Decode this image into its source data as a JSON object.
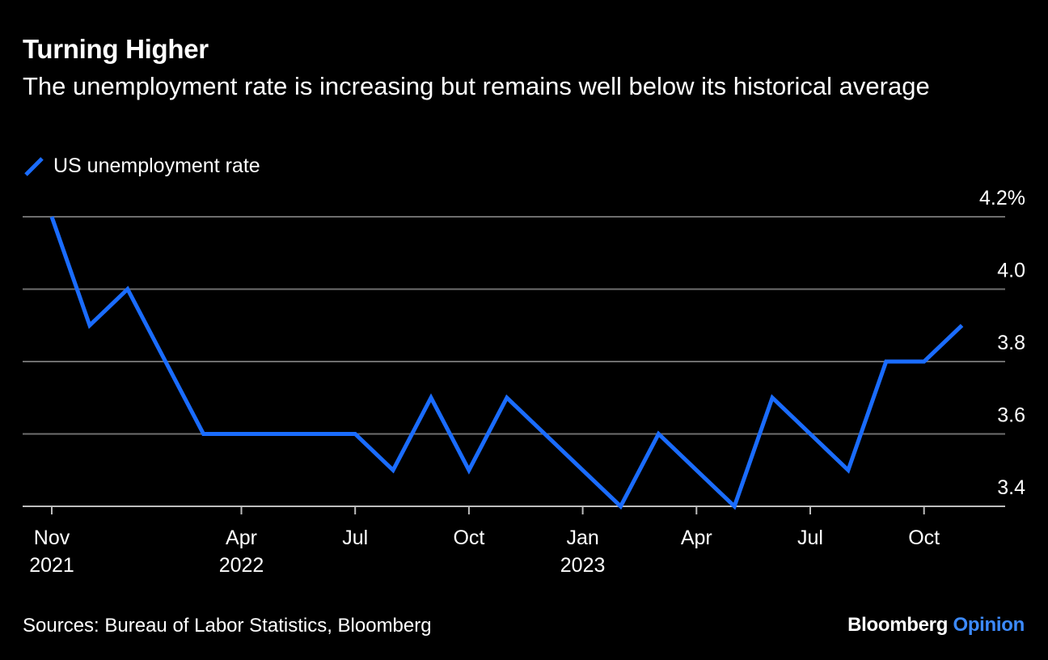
{
  "header": {
    "title": "Turning Higher",
    "subtitle": "The unemployment rate is increasing but remains well below its historical average"
  },
  "footer": {
    "source": "Sources: Bureau of Labor Statistics, Bloomberg",
    "brand_main": "Bloomberg",
    "brand_accent": "Opinion"
  },
  "colors": {
    "background": "#000000",
    "line": "#1a6cff",
    "grid": "#6e6e6e",
    "brand_accent": "#3c8aff"
  },
  "chart_data": {
    "type": "line",
    "title": "Turning Higher",
    "subtitle": "The unemployment rate is increasing but remains well below its historical average",
    "xlabel": "",
    "ylabel": "",
    "ylim": [
      3.4,
      4.2
    ],
    "y_ticks": [
      {
        "value": 4.2,
        "label": "4.2%"
      },
      {
        "value": 4.0,
        "label": "4.0"
      },
      {
        "value": 3.8,
        "label": "3.8"
      },
      {
        "value": 3.6,
        "label": "3.6"
      },
      {
        "value": 3.4,
        "label": "3.4"
      }
    ],
    "x_ticks": [
      {
        "date": "2021-11",
        "label": "Nov",
        "year": "2021"
      },
      {
        "date": "2022-04",
        "label": "Apr",
        "year": "2022"
      },
      {
        "date": "2022-07",
        "label": "Jul",
        "year": ""
      },
      {
        "date": "2022-10",
        "label": "Oct",
        "year": ""
      },
      {
        "date": "2023-01",
        "label": "Jan",
        "year": "2023"
      },
      {
        "date": "2023-04",
        "label": "Apr",
        "year": ""
      },
      {
        "date": "2023-07",
        "label": "Jul",
        "year": ""
      },
      {
        "date": "2023-10",
        "label": "Oct",
        "year": ""
      }
    ],
    "grid": true,
    "legend_position": "top-left",
    "series": [
      {
        "name": "US unemployment rate",
        "x": [
          "2021-11",
          "2021-12",
          "2022-01",
          "2022-02",
          "2022-03",
          "2022-04",
          "2022-05",
          "2022-06",
          "2022-07",
          "2022-08",
          "2022-09",
          "2022-10",
          "2022-11",
          "2022-12",
          "2023-01",
          "2023-02",
          "2023-03",
          "2023-04",
          "2023-05",
          "2023-06",
          "2023-07",
          "2023-08",
          "2023-09",
          "2023-10",
          "2023-11"
        ],
        "values": [
          4.2,
          3.9,
          4.0,
          3.8,
          3.6,
          3.6,
          3.6,
          3.6,
          3.6,
          3.5,
          3.7,
          3.5,
          3.7,
          3.6,
          3.5,
          3.4,
          3.6,
          3.5,
          3.4,
          3.7,
          3.6,
          3.5,
          3.8,
          3.8,
          3.9
        ]
      }
    ]
  }
}
